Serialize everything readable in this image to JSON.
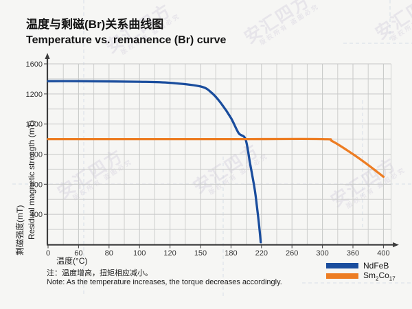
{
  "header": {
    "title_zh": "温度与剩磁(Br)关系曲线图",
    "title_en": "Temperature vs. remanence (Br) curve"
  },
  "chart_data": {
    "type": "line",
    "title": "温度与剩磁(Br)关系曲线图 / Temperature vs. remanence (Br) curve",
    "xlabel": "温度(°C)",
    "ylabel_zh": "剩磁强度(mT)",
    "ylabel_en": "Residual magnetic strength (mT)",
    "x_ticks": [
      0,
      60,
      80,
      100,
      120,
      150,
      180,
      220,
      260,
      300,
      360,
      400
    ],
    "y_ticks": [
      0,
      400,
      600,
      800,
      1000,
      1200,
      1600
    ],
    "axis_style": "tick labels evenly spaced (non-linear value scale), minor gridline between each pair of labeled ticks",
    "grid": true,
    "legend_position": "bottom-right",
    "series": [
      {
        "name": "NdFeB",
        "color": "#1a4d9d",
        "points": [
          [
            0,
            1370
          ],
          [
            60,
            1370
          ],
          [
            100,
            1362
          ],
          [
            120,
            1348
          ],
          [
            150,
            1300
          ],
          [
            161,
            1215
          ],
          [
            170,
            1140
          ],
          [
            180,
            1040
          ],
          [
            190,
            940
          ],
          [
            199,
            900
          ],
          [
            205,
            740
          ],
          [
            211,
            570
          ],
          [
            214,
            455
          ],
          [
            217,
            240
          ],
          [
            219,
            30
          ]
        ]
      },
      {
        "name": "Sm2Co17",
        "color": "#ed7d23",
        "points": [
          [
            0,
            900
          ],
          [
            100,
            900
          ],
          [
            200,
            900
          ],
          [
            300,
            900
          ],
          [
            320,
            885
          ],
          [
            360,
            800
          ],
          [
            380,
            728
          ],
          [
            400,
            650
          ]
        ]
      }
    ]
  },
  "legend": {
    "items": [
      {
        "label": "NdFeB",
        "color": "#1a4d9d"
      },
      {
        "label_pre": "Sm",
        "label_sub1": "2",
        "label_mid": "Co",
        "label_sub2": "17",
        "color": "#ed7d23"
      }
    ]
  },
  "note": {
    "line1": "注：温度增高，扭矩相应减小。",
    "line2": "Note: As the temperature increases, the torque decreases accordingly."
  },
  "watermark": {
    "text": "安汇四方",
    "subtext": "版权所有 盗图必究"
  }
}
